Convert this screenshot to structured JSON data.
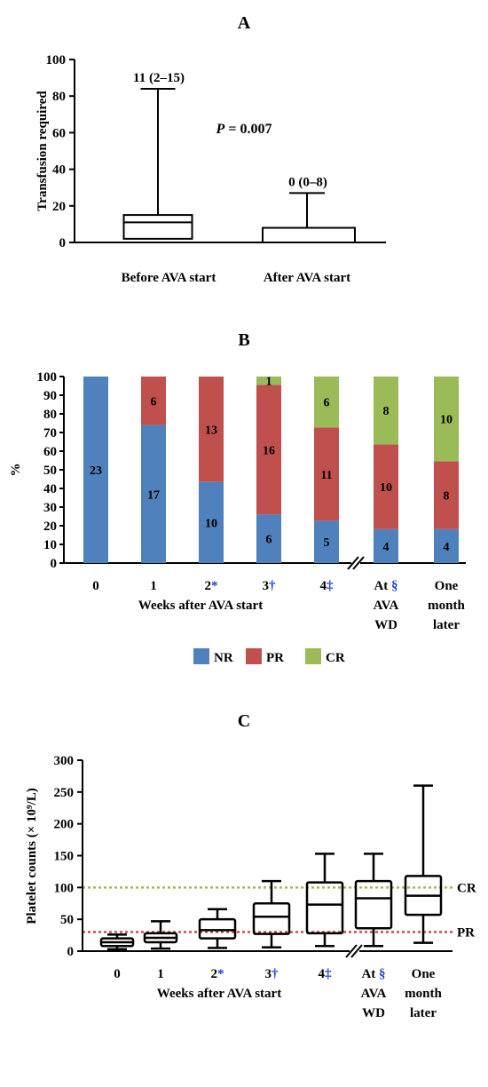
{
  "chart_data": [
    {
      "type": "box",
      "panel_label": "A",
      "ylabel": "Transfusion required",
      "ylim": [
        0,
        100
      ],
      "yticks": [
        0,
        20,
        40,
        60,
        80,
        100
      ],
      "categories": [
        "Before AVA start",
        "After AVA start"
      ],
      "boxes": [
        {
          "min": 0,
          "q1": 2,
          "median": 11,
          "q3": 15,
          "max": 84,
          "label": "11 (2–15)"
        },
        {
          "min": 0,
          "q1": 0,
          "median": 0,
          "q3": 8,
          "max": 27,
          "label": "0 (0–8)"
        }
      ],
      "annotation": {
        "p_label": "P",
        "p_value": " = 0.007"
      },
      "grid": false
    },
    {
      "type": "bar",
      "stacked": true,
      "panel_label": "B",
      "ylabel": "%",
      "xlabel": "Weeks after AVA start",
      "ylim": [
        0,
        100
      ],
      "yticks": [
        0,
        10,
        20,
        30,
        40,
        50,
        60,
        70,
        80,
        90,
        100
      ],
      "categories": [
        {
          "lines": [
            "0"
          ],
          "mark": ""
        },
        {
          "lines": [
            "1"
          ],
          "mark": ""
        },
        {
          "lines": [
            "2"
          ],
          "mark": "*"
        },
        {
          "lines": [
            "3"
          ],
          "mark": "†"
        },
        {
          "lines": [
            "4"
          ],
          "mark": "‡"
        },
        {
          "lines": [
            "At",
            "AVA",
            "WD"
          ],
          "mark": "§"
        },
        {
          "lines": [
            "One",
            "month",
            "later"
          ],
          "mark": ""
        }
      ],
      "series": [
        {
          "name": "NR",
          "color": "#4f81bd",
          "values": [
            100,
            74,
            43.5,
            26,
            22.7,
            18.2,
            18.2
          ],
          "counts": [
            23,
            17,
            10,
            6,
            5,
            4,
            4
          ]
        },
        {
          "name": "PR",
          "color": "#c0504d",
          "values": [
            0,
            26,
            56.5,
            69.6,
            50,
            45.4,
            36.4
          ],
          "counts": [
            0,
            6,
            13,
            16,
            11,
            10,
            8
          ]
        },
        {
          "name": "CR",
          "color": "#9bbb59",
          "values": [
            0,
            0,
            0,
            4.4,
            27.3,
            36.4,
            45.4
          ],
          "counts": [
            0,
            0,
            0,
            1,
            6,
            8,
            10
          ]
        }
      ],
      "legend_position": "bottom",
      "grid": false
    },
    {
      "type": "box",
      "panel_label": "C",
      "ylabel": "Platelet counts (× 10⁹/L)",
      "xlabel": "Weeks after AVA start",
      "ylim": [
        0,
        300
      ],
      "yticks": [
        0,
        50,
        100,
        150,
        200,
        250,
        300
      ],
      "categories": [
        {
          "lines": [
            "0"
          ],
          "mark": ""
        },
        {
          "lines": [
            "1"
          ],
          "mark": ""
        },
        {
          "lines": [
            "2"
          ],
          "mark": "*"
        },
        {
          "lines": [
            "3"
          ],
          "mark": "†"
        },
        {
          "lines": [
            "4"
          ],
          "mark": "‡"
        },
        {
          "lines": [
            "At",
            "AVA",
            "WD"
          ],
          "mark": "§"
        },
        {
          "lines": [
            "One",
            "month",
            "later"
          ],
          "mark": ""
        }
      ],
      "boxes": [
        {
          "min": 3,
          "q1": 8,
          "median": 14,
          "q3": 20,
          "max": 26
        },
        {
          "min": 4,
          "q1": 14,
          "median": 21,
          "q3": 28,
          "max": 47
        },
        {
          "min": 5,
          "q1": 20,
          "median": 33,
          "q3": 50,
          "max": 66
        },
        {
          "min": 6,
          "q1": 27,
          "median": 54,
          "q3": 75,
          "max": 110
        },
        {
          "min": 8,
          "q1": 28,
          "median": 73,
          "q3": 108,
          "max": 153
        },
        {
          "min": 8,
          "q1": 36,
          "median": 83,
          "q3": 110,
          "max": 153
        },
        {
          "min": 13,
          "q1": 57,
          "median": 87,
          "q3": 118,
          "max": 260
        }
      ],
      "reference_lines": [
        {
          "label": "CR",
          "value": 100,
          "color": "#9bbb59"
        },
        {
          "label": "PR",
          "value": 30,
          "color": "#c0504d"
        }
      ],
      "grid": false
    }
  ]
}
